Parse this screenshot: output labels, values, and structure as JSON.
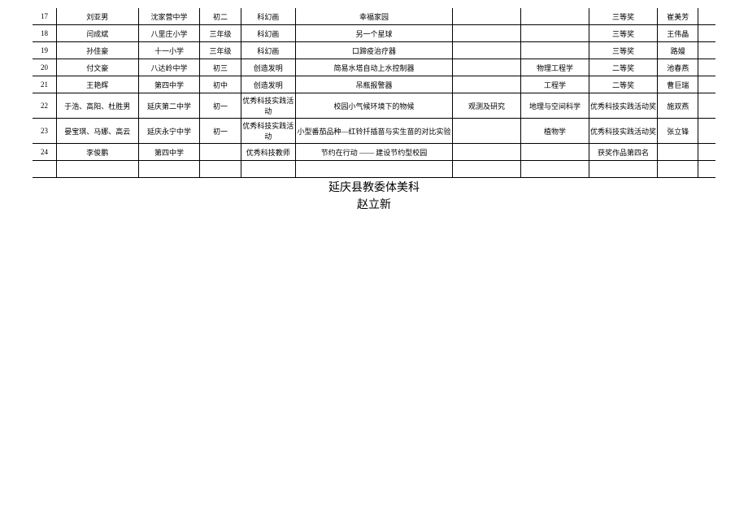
{
  "rows": [
    {
      "idx": "17",
      "name": "刘亚男",
      "school": "沈家营中学",
      "grade": "初二",
      "cat": "科幻画",
      "title": "幸福家园",
      "obs": "",
      "field": "",
      "award": "三等奖",
      "teacher": "崔美芳"
    },
    {
      "idx": "18",
      "name": "闫成斌",
      "school": "八里庄小学",
      "grade": "三年级",
      "cat": "科幻画",
      "title": "另一个星球",
      "obs": "",
      "field": "",
      "award": "三等奖",
      "teacher": "王伟晶"
    },
    {
      "idx": "19",
      "name": "孙佳豪",
      "school": "十一小学",
      "grade": "三年级",
      "cat": "科幻画",
      "title": "口蹄疫治疗器",
      "obs": "",
      "field": "",
      "award": "三等奖",
      "teacher": "路嫚"
    },
    {
      "idx": "20",
      "name": "付文豪",
      "school": "八达岭中学",
      "grade": "初三",
      "cat": "创造发明",
      "title": "简易水塔自动上水控制器",
      "obs": "",
      "field": "物理工程学",
      "award": "二等奖",
      "teacher": "池春燕"
    },
    {
      "idx": "21",
      "name": "王艳辉",
      "school": "第四中学",
      "grade": "初中",
      "cat": "创造发明",
      "title": "吊瓶报警器",
      "obs": "",
      "field": "工程学",
      "award": "二等奖",
      "teacher": "曹巨瑞"
    },
    {
      "idx": "22",
      "name": "于浩、高阳、杜胜男",
      "school": "延庆第二中学",
      "grade": "初一",
      "cat": "优秀科技实践活动",
      "title": "校园小气候环境下的物候",
      "obs": "观测及研究",
      "field": "地理与空间科学",
      "award": "优秀科技实践活动奖",
      "teacher": "施双燕"
    },
    {
      "idx": "23",
      "name": "晏宝琪、马娜、高云",
      "school": "延庆永宁中学",
      "grade": "初一",
      "cat": "优秀科技实践活动",
      "title": "小型番茄品种—红铃扦插苗与实生苗的对比实验",
      "obs": "",
      "field": "植物学",
      "award": "优秀科技实践活动奖",
      "teacher": "张立锋"
    },
    {
      "idx": "24",
      "name": "李俊鹏",
      "school": "第四中学",
      "grade": "",
      "cat": "优秀科技教师",
      "title": "节约在行动 —— 建设节约型校园",
      "obs": "",
      "field": "",
      "award": "获奖作品第四名",
      "teacher": ""
    }
  ],
  "footer": {
    "line1": "延庆县教委体美科",
    "line2": "赵立新"
  }
}
